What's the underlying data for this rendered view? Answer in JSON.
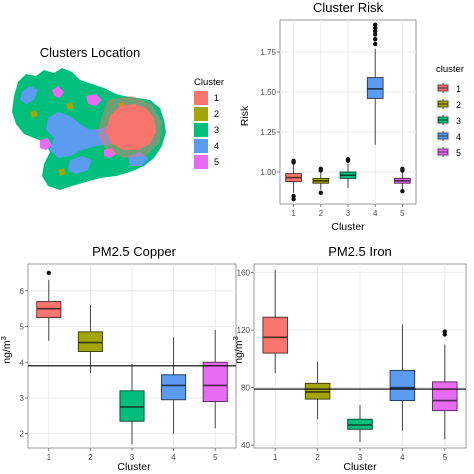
{
  "colors": {
    "cluster": [
      "#F8766D",
      "#A3A500",
      "#00BF7D",
      "#5B9BF0",
      "#E76BF3"
    ],
    "panel_bg": "#ffffff",
    "grid": "#ebebeb",
    "border": "#7f7f7f"
  },
  "map": {
    "title": "Clusters Location",
    "legend_title": "Cluster",
    "legend_labels": [
      "1",
      "2",
      "3",
      "4",
      "5"
    ]
  },
  "chart_data": [
    {
      "id": "risk",
      "type": "boxplot",
      "title": "Cluster Risk",
      "xlabel": "Cluster",
      "ylabel": "Risk",
      "ylabel_sup": "",
      "ylim": [
        0.8,
        1.95
      ],
      "yticks": [
        1.0,
        1.25,
        1.5,
        1.75
      ],
      "ytick_labels": [
        "1.00",
        "1.25",
        "1.50",
        "1.75"
      ],
      "legend": "right",
      "legend_title": "cluster",
      "hline": null,
      "categories": [
        "1",
        "2",
        "3",
        "4",
        "5"
      ],
      "boxes": [
        {
          "q1": 0.94,
          "median": 0.965,
          "q3": 0.99,
          "whisker_low": 0.87,
          "whisker_high": 1.05,
          "outliers": [
            0.83,
            0.85,
            1.06,
            1.07
          ]
        },
        {
          "q1": 0.93,
          "median": 0.945,
          "q3": 0.96,
          "whisker_low": 0.89,
          "whisker_high": 1.0,
          "outliers": [
            0.87,
            1.01,
            1.02
          ]
        },
        {
          "q1": 0.96,
          "median": 0.98,
          "q3": 1.0,
          "whisker_low": 0.9,
          "whisker_high": 1.06,
          "outliers": [
            1.07,
            1.08
          ]
        },
        {
          "q1": 1.46,
          "median": 1.52,
          "q3": 1.59,
          "whisker_low": 1.17,
          "whisker_high": 1.77,
          "outliers": [
            1.8,
            1.83,
            1.86,
            1.88,
            1.9,
            1.92
          ]
        },
        {
          "q1": 0.93,
          "median": 0.945,
          "q3": 0.96,
          "whisker_low": 0.89,
          "whisker_high": 1.0,
          "outliers": [
            0.88,
            1.01,
            1.02
          ]
        }
      ]
    },
    {
      "id": "copper",
      "type": "boxplot",
      "title": "PM2.5 Copper",
      "xlabel": "Cluster",
      "ylabel": "ng/m",
      "ylabel_sup": "3",
      "ylim": [
        1.6,
        6.75
      ],
      "yticks": [
        2,
        3,
        4,
        5,
        6
      ],
      "ytick_labels": [
        "2",
        "3",
        "4",
        "5",
        "6"
      ],
      "legend": "none",
      "hline": 3.9,
      "categories": [
        "1",
        "2",
        "3",
        "4",
        "5"
      ],
      "boxes": [
        {
          "q1": 5.25,
          "median": 5.5,
          "q3": 5.7,
          "whisker_low": 4.6,
          "whisker_high": 6.3,
          "outliers": [
            6.5
          ]
        },
        {
          "q1": 4.3,
          "median": 4.55,
          "q3": 4.85,
          "whisker_low": 3.7,
          "whisker_high": 5.6,
          "outliers": []
        },
        {
          "q1": 2.35,
          "median": 2.75,
          "q3": 3.2,
          "whisker_low": 1.7,
          "whisker_high": 3.95,
          "outliers": []
        },
        {
          "q1": 2.95,
          "median": 3.35,
          "q3": 3.65,
          "whisker_low": 2.0,
          "whisker_high": 4.7,
          "outliers": []
        },
        {
          "q1": 2.9,
          "median": 3.35,
          "q3": 4.0,
          "whisker_low": 2.15,
          "whisker_high": 4.9,
          "outliers": []
        }
      ]
    },
    {
      "id": "iron",
      "type": "boxplot",
      "title": "PM2.5 Iron",
      "xlabel": "Cluster",
      "ylabel": "ng/m",
      "ylabel_sup": "3",
      "ylim": [
        38,
        166
      ],
      "yticks": [
        40,
        80,
        120,
        160
      ],
      "ytick_labels": [
        "40",
        "80",
        "120",
        "160"
      ],
      "legend": "none",
      "hline": 79,
      "categories": [
        "1",
        "2",
        "3",
        "4",
        "5"
      ],
      "boxes": [
        {
          "q1": 104,
          "median": 115,
          "q3": 129,
          "whisker_low": 90,
          "whisker_high": 162,
          "outliers": []
        },
        {
          "q1": 72,
          "median": 77,
          "q3": 83,
          "whisker_low": 58,
          "whisker_high": 98,
          "outliers": []
        },
        {
          "q1": 51,
          "median": 54,
          "q3": 58,
          "whisker_low": 42,
          "whisker_high": 68,
          "outliers": []
        },
        {
          "q1": 71,
          "median": 80,
          "q3": 92,
          "whisker_low": 50,
          "whisker_high": 124,
          "outliers": []
        },
        {
          "q1": 64,
          "median": 71,
          "q3": 84,
          "whisker_low": 44,
          "whisker_high": 110,
          "outliers": [
            117,
            119
          ]
        }
      ]
    }
  ]
}
